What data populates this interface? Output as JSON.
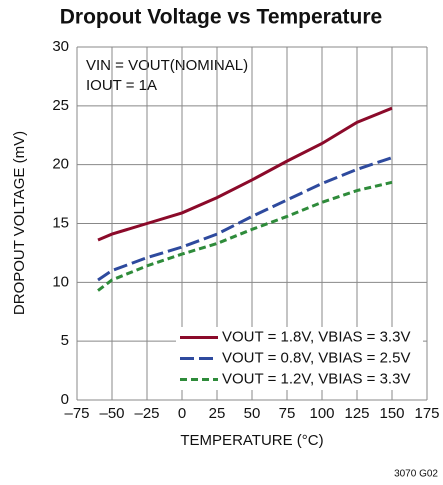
{
  "chart_data": {
    "type": "line",
    "title": "Dropout Voltage vs Temperature",
    "xlabel": "TEMPERATURE (°C)",
    "ylabel": "DROPOUT VOLTAGE (mV)",
    "annotations": [
      "VIN = VOUT(NOMINAL)",
      "IOUT = 1A"
    ],
    "footnote": "3070 G02",
    "x": [
      -60,
      -50,
      -25,
      0,
      25,
      50,
      75,
      100,
      125,
      150
    ],
    "series": [
      {
        "name": "VOUT = 1.8V, VBIAS = 3.3V",
        "color": "#8b0a2a",
        "dash": "solid",
        "values": [
          13.6,
          14.1,
          15.0,
          15.9,
          17.2,
          18.7,
          20.3,
          21.8,
          23.6,
          24.8
        ]
      },
      {
        "name": "VOUT = 0.8V, VBIAS = 2.5V",
        "color": "#2e4a9e",
        "dash": "dashed",
        "values": [
          10.2,
          11.0,
          12.1,
          13.0,
          14.1,
          15.6,
          17.0,
          18.4,
          19.6,
          20.6
        ]
      },
      {
        "name": "VOUT = 1.2V, VBIAS = 3.3V",
        "color": "#2e8b3a",
        "dash": "dotted",
        "values": [
          9.3,
          10.2,
          11.4,
          12.4,
          13.3,
          14.5,
          15.6,
          16.8,
          17.8,
          18.5
        ]
      }
    ],
    "xlim": [
      -75,
      175
    ],
    "xticks": [
      {
        "value": -75,
        "label": "–75"
      },
      {
        "value": -50,
        "label": "–50"
      },
      {
        "value": -25,
        "label": "–25"
      },
      0,
      25,
      50,
      75,
      100,
      125,
      150,
      175
    ],
    "ylim": [
      0,
      30
    ],
    "yticks": [
      0,
      5,
      10,
      15,
      20,
      25,
      30
    ],
    "grid": true,
    "legend": "lower right"
  }
}
